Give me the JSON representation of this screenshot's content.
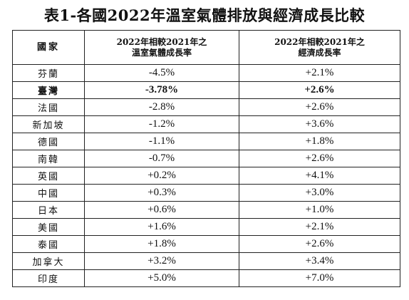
{
  "title": "表1-各國2022年溫室氣體排放與經濟成長比較",
  "table": {
    "headers": {
      "country": "國家",
      "ghg_line1": "2022年相較2021年之",
      "ghg_line2": "溫室氣體成長率",
      "econ_line1": "2022年相較2021年之",
      "econ_line2": "經濟成長率"
    },
    "rows": [
      {
        "country": "芬蘭",
        "ghg": "-4.5%",
        "econ": "+2.1%"
      },
      {
        "country": "臺灣",
        "ghg": "-3.78%",
        "econ": "+2.6%"
      },
      {
        "country": "法國",
        "ghg": "-2.8%",
        "econ": "+2.6%"
      },
      {
        "country": "新加坡",
        "ghg": "-1.2%",
        "econ": "+3.6%"
      },
      {
        "country": "德國",
        "ghg": "-1.1%",
        "econ": "+1.8%"
      },
      {
        "country": "南韓",
        "ghg": "-0.7%",
        "econ": "+2.6%"
      },
      {
        "country": "英國",
        "ghg": "+0.2%",
        "econ": "+4.1%"
      },
      {
        "country": "中國",
        "ghg": "+0.3%",
        "econ": "+3.0%"
      },
      {
        "country": "日本",
        "ghg": "+0.6%",
        "econ": "+1.0%"
      },
      {
        "country": "美國",
        "ghg": "+1.6%",
        "econ": "+2.1%"
      },
      {
        "country": "泰國",
        "ghg": "+1.8%",
        "econ": "+2.6%"
      },
      {
        "country": "加拿大",
        "ghg": "+3.2%",
        "econ": "+3.4%"
      },
      {
        "country": "印度",
        "ghg": "+5.0%",
        "econ": "+7.0%"
      }
    ]
  }
}
